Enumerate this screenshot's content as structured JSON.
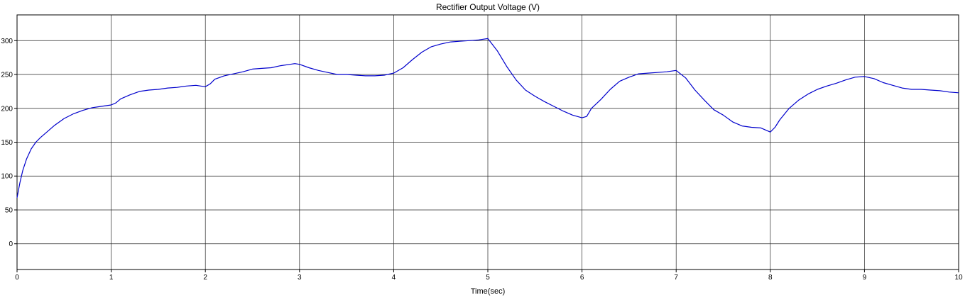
{
  "chart_data": {
    "type": "line",
    "title": "Rectifier Output Voltage (V)",
    "xlabel": "Time(sec)",
    "ylabel": "",
    "xlim": [
      0,
      10
    ],
    "ylim": [
      -38,
      338
    ],
    "xticks": [
      "0",
      "1",
      "2",
      "3",
      "4",
      "5",
      "6",
      "7",
      "8",
      "9",
      "10"
    ],
    "yticks": [
      "0",
      "50",
      "100",
      "150",
      "200",
      "250",
      "300"
    ],
    "grid": true,
    "line_color": "#0000cc",
    "series": [
      {
        "x": [
          0,
          0.03,
          0.06,
          0.1,
          0.15,
          0.2,
          0.25,
          0.3,
          0.4,
          0.5,
          0.6,
          0.7,
          0.8,
          0.9,
          1.0,
          1.05,
          1.1,
          1.2,
          1.3,
          1.4,
          1.5,
          1.6,
          1.7,
          1.8,
          1.9,
          1.95,
          2.0,
          2.05,
          2.1,
          2.2,
          2.3,
          2.4,
          2.5,
          2.6,
          2.7,
          2.8,
          2.9,
          2.95,
          3.0,
          3.1,
          3.2,
          3.3,
          3.4,
          3.5,
          3.6,
          3.7,
          3.8,
          3.9,
          4.0,
          4.1,
          4.2,
          4.3,
          4.4,
          4.5,
          4.6,
          4.7,
          4.8,
          4.9,
          5.0,
          5.1,
          5.2,
          5.3,
          5.4,
          5.5,
          5.6,
          5.7,
          5.8,
          5.9,
          6.0,
          6.05,
          6.1,
          6.2,
          6.3,
          6.4,
          6.5,
          6.6,
          6.7,
          6.8,
          6.9,
          7.0,
          7.1,
          7.2,
          7.3,
          7.4,
          7.5,
          7.6,
          7.7,
          7.8,
          7.9,
          8.0,
          8.05,
          8.1,
          8.2,
          8.3,
          8.4,
          8.5,
          8.6,
          8.7,
          8.8,
          8.9,
          9.0,
          9.1,
          9.2,
          9.3,
          9.4,
          9.5,
          9.6,
          9.7,
          9.8,
          9.9,
          10.0
        ],
        "y": [
          68,
          90,
          108,
          125,
          140,
          150,
          157,
          163,
          175,
          185,
          192,
          197,
          201,
          203,
          205,
          208,
          214,
          220,
          225,
          227,
          228,
          230,
          231,
          233,
          234,
          233,
          232,
          236,
          243,
          248,
          251,
          254,
          258,
          259,
          260,
          263,
          265,
          266,
          265,
          260,
          256,
          253,
          250,
          250,
          249,
          248,
          248,
          249,
          252,
          260,
          272,
          283,
          291,
          295,
          298,
          299,
          300,
          301,
          303,
          285,
          262,
          242,
          227,
          218,
          210,
          203,
          196,
          190,
          186,
          188,
          200,
          213,
          228,
          240,
          246,
          251,
          252,
          253,
          254,
          256,
          245,
          227,
          212,
          198,
          190,
          180,
          174,
          172,
          171,
          165,
          172,
          183,
          200,
          212,
          221,
          228,
          233,
          237,
          242,
          246,
          247,
          244,
          238,
          234,
          230,
          228,
          228,
          227,
          226,
          224,
          223
        ]
      }
    ]
  }
}
